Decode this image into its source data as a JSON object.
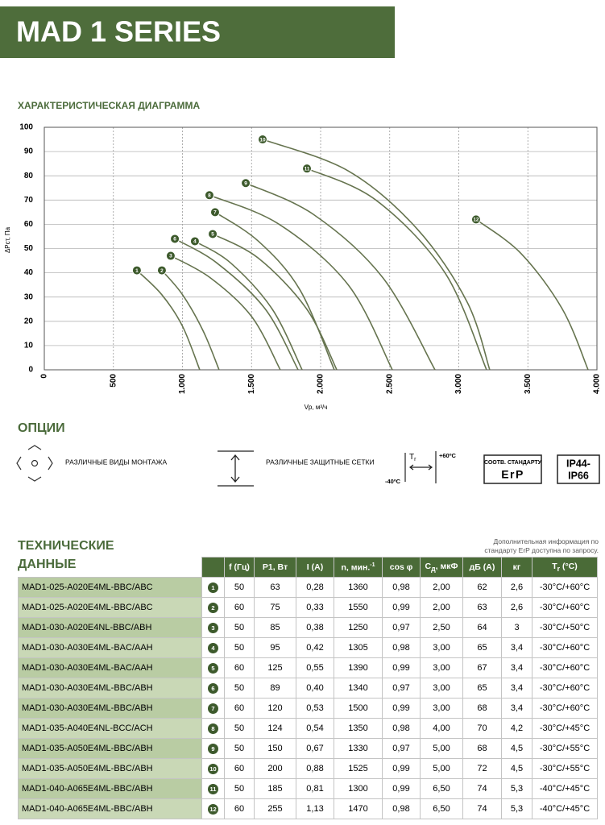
{
  "header": {
    "title": "MAD 1 SERIES"
  },
  "chart_data": {
    "type": "line",
    "title": "ХАРАКТЕРИСТИЧЕСКАЯ ДИАГРАММА",
    "x_label": "Vp, м³/ч",
    "y_label": "ΔPст, Па",
    "xlim": [
      0,
      4000
    ],
    "ylim": [
      0,
      100
    ],
    "xticks": [
      0,
      500,
      {
        "value": 1000,
        "label": "1.000"
      },
      {
        "value": 1500,
        "label": "1.500"
      },
      {
        "value": 2000,
        "label": "2.000"
      },
      {
        "value": 2500,
        "label": "2.500"
      },
      {
        "value": 3000,
        "label": "3.000"
      },
      {
        "value": 3500,
        "label": "3.500"
      },
      {
        "value": 4000,
        "label": "4.000"
      }
    ],
    "yticks": [
      0,
      10,
      20,
      30,
      40,
      50,
      60,
      70,
      80,
      90,
      100
    ],
    "grid": true,
    "color": "#66744f",
    "marker_color": "#3d5a2c",
    "series": [
      {
        "name": "1",
        "x": [
          670,
          850,
          1000,
          1125
        ],
        "values": [
          41,
          31,
          18,
          0
        ]
      },
      {
        "name": "2",
        "x": [
          851,
          1000,
          1150,
          1265
        ],
        "values": [
          41,
          31,
          16,
          0
        ]
      },
      {
        "name": "3",
        "x": [
          915,
          1200,
          1500,
          1708
        ],
        "values": [
          47,
          38,
          22,
          0
        ]
      },
      {
        "name": "4",
        "x": [
          1090,
          1350,
          1650,
          1866
        ],
        "values": [
          53,
          44,
          25,
          0
        ]
      },
      {
        "name": "5",
        "x": [
          1219,
          1550,
          1900,
          2117
        ],
        "values": [
          56,
          46,
          25,
          0
        ]
      },
      {
        "name": "6",
        "x": [
          945,
          1250,
          1600,
          1837
        ],
        "values": [
          54,
          44,
          25,
          0
        ]
      },
      {
        "name": "7",
        "x": [
          1236,
          1550,
          1850,
          2099
        ],
        "values": [
          65,
          53,
          33,
          0
        ]
      },
      {
        "name": "8",
        "x": [
          1195,
          1700,
          2200,
          2519
        ],
        "values": [
          72,
          60,
          35,
          0
        ]
      },
      {
        "name": "9",
        "x": [
          1458,
          1950,
          2450,
          2828
        ],
        "values": [
          77,
          64,
          38,
          0
        ]
      },
      {
        "name": "10",
        "x": [
          1580,
          2200,
          2700,
          3060,
          3224
        ],
        "values": [
          95,
          82,
          58,
          28,
          0
        ]
      },
      {
        "name": "11",
        "x": [
          1901,
          2400,
          2900,
          3201
        ],
        "values": [
          83,
          70,
          40,
          0
        ]
      },
      {
        "name": "12",
        "x": [
          3125,
          3450,
          3750,
          3936
        ],
        "values": [
          62,
          48,
          25,
          0
        ]
      }
    ]
  },
  "options": {
    "title": "ОПЦИИ",
    "mounting": "РАЗЛИЧНЫЕ ВИДЫ МОНТАЖА",
    "grids": "РАЗЛИЧНЫЕ ЗАЩИТНЫЕ СЕТКИ",
    "temp": {
      "symbol": "T",
      "sub": "r",
      "max": "+60ºC",
      "min": "-40ºC"
    },
    "erp": {
      "line1": "СООТВ. СТАНДАРТУ",
      "line2": "ErP"
    },
    "ip": {
      "line1": "IP44-",
      "line2": "IP66"
    }
  },
  "table": {
    "title_lines": [
      "ТЕХНИЧЕСКИЕ",
      "ДАННЫЕ"
    ],
    "note": "Дополнительная информация по стандарту ErP доступна по запросу.",
    "columns": [
      [
        {
          "t": "f (Гц)"
        }
      ],
      [
        {
          "t": "P1, Вт"
        }
      ],
      [
        {
          "t": "I (A)"
        }
      ],
      [
        {
          "t": "n, мин."
        },
        {
          "sup": "-1"
        }
      ],
      [
        {
          "t": "cos φ"
        }
      ],
      [
        {
          "t": "C"
        },
        {
          "sub": "д"
        },
        {
          "t": ", мкФ"
        }
      ],
      [
        {
          "t": "дБ (A)"
        }
      ],
      [
        {
          "t": "кг"
        }
      ],
      [
        {
          "t": "T"
        },
        {
          "sub": "r"
        },
        {
          "t": " (°C)"
        }
      ]
    ],
    "rows": [
      [
        "MAD1-025-A020E4ML-BBC/ABC",
        "1",
        "50",
        "63",
        "0,28",
        "1360",
        "0,98",
        "2,00",
        "62",
        "2,6",
        "-30°C/+60°C"
      ],
      [
        "MAD1-025-A020E4ML-BBC/ABC",
        "2",
        "60",
        "75",
        "0,33",
        "1550",
        "0,99",
        "2,00",
        "63",
        "2,6",
        "-30°C/+60°C"
      ],
      [
        "MAD1-030-A020E4NL-BBC/ABH",
        "3",
        "50",
        "85",
        "0,38",
        "1250",
        "0,97",
        "2,50",
        "64",
        "3",
        "-30°C/+50°C"
      ],
      [
        "MAD1-030-A030E4ML-BAC/AAH",
        "4",
        "50",
        "95",
        "0,42",
        "1305",
        "0,98",
        "3,00",
        "65",
        "3,4",
        "-30°C/+60°C"
      ],
      [
        "MAD1-030-A030E4ML-BAC/AAH",
        "5",
        "60",
        "125",
        "0,55",
        "1390",
        "0,99",
        "3,00",
        "67",
        "3,4",
        "-30°C/+60°C"
      ],
      [
        "MAD1-030-A030E4ML-BBC/ABH",
        "6",
        "50",
        "89",
        "0,40",
        "1340",
        "0,97",
        "3,00",
        "65",
        "3,4",
        "-30°C/+60°C"
      ],
      [
        "MAD1-030-A030E4ML-BBC/ABH",
        "7",
        "60",
        "120",
        "0,53",
        "1500",
        "0,99",
        "3,00",
        "68",
        "3,4",
        "-30°C/+60°C"
      ],
      [
        "MAD1-035-A040E4NL-BCC/ACH",
        "8",
        "50",
        "124",
        "0,54",
        "1350",
        "0,98",
        "4,00",
        "70",
        "4,2",
        "-30°C/+45°C"
      ],
      [
        "MAD1-035-A050E4ML-BBC/ABH",
        "9",
        "50",
        "150",
        "0,67",
        "1330",
        "0,97",
        "5,00",
        "68",
        "4,5",
        "-30°C/+55°C"
      ],
      [
        "MAD1-035-A050E4ML-BBC/ABH",
        "10",
        "60",
        "200",
        "0,88",
        "1525",
        "0,99",
        "5,00",
        "72",
        "4,5",
        "-30°C/+55°C"
      ],
      [
        "MAD1-040-A065E4ML-BBC/ABH",
        "11",
        "50",
        "185",
        "0,81",
        "1300",
        "0,99",
        "6,50",
        "74",
        "5,3",
        "-40°C/+45°C"
      ],
      [
        "MAD1-040-A065E4ML-BBC/ABH",
        "12",
        "60",
        "255",
        "1,13",
        "1470",
        "0,98",
        "6,50",
        "74",
        "5,3",
        "-40°C/+45°C"
      ]
    ]
  }
}
